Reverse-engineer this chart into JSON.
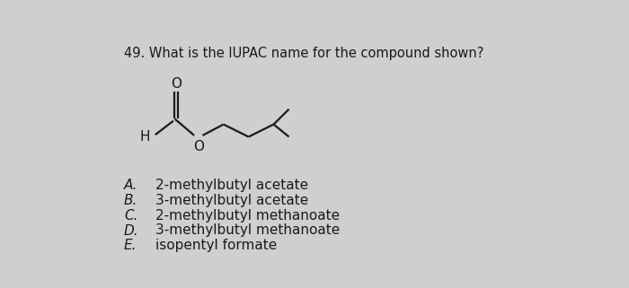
{
  "question_number": "49.",
  "question_text": "What is the IUPAC name for the compound shown?",
  "choices": [
    [
      "A.",
      "2-methylbutyl acetate"
    ],
    [
      "B.",
      "3-methylbutyl acetate"
    ],
    [
      "C.",
      "2-methylbutyl methanoate"
    ],
    [
      "D.",
      "3-methylbutyl methanoate"
    ],
    [
      "E.",
      "isopentyl formate"
    ]
  ],
  "background_color": "#d0cece",
  "text_color": "#1a1a1a",
  "font_size_question": 10.5,
  "font_size_choices": 11,
  "font_size_labels": 11
}
